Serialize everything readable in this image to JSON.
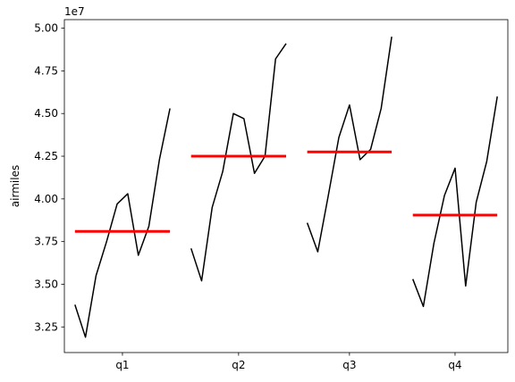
{
  "chart_data": {
    "type": "line",
    "title": "",
    "xlabel": "",
    "ylabel": "airmiles",
    "y_offset_label": "1e7",
    "grid": false,
    "ylim": [
      31000000,
      50500000
    ],
    "yticks": [
      32500000,
      35000000,
      37500000,
      40000000,
      42500000,
      45000000,
      47500000,
      50000000
    ],
    "ytick_labels": [
      "3.25",
      "3.50",
      "3.75",
      "4.00",
      "4.25",
      "4.50",
      "4.75",
      "5.00"
    ],
    "categories": [
      "q1",
      "q2",
      "q3",
      "q4"
    ],
    "line_color": "#000000",
    "mean_color": "#ff0000",
    "groups": [
      {
        "label": "q1",
        "values": [
          33800000,
          31900000,
          35500000,
          37500000,
          39700000,
          40300000,
          36700000,
          38400000,
          42300000,
          45300000
        ],
        "mean": 38100000
      },
      {
        "label": "q2",
        "values": [
          37100000,
          35200000,
          39500000,
          41600000,
          45000000,
          44700000,
          41500000,
          42500000,
          48200000,
          49100000
        ],
        "mean": 42500000
      },
      {
        "label": "q3",
        "values": [
          38600000,
          36900000,
          40200000,
          43600000,
          45500000,
          42300000,
          42900000,
          45300000,
          49500000
        ],
        "mean": 42750000
      },
      {
        "label": "q4",
        "values": [
          35300000,
          33700000,
          37400000,
          40200000,
          41800000,
          34900000,
          39800000,
          42200000,
          46000000
        ],
        "mean": 39050000
      }
    ]
  }
}
